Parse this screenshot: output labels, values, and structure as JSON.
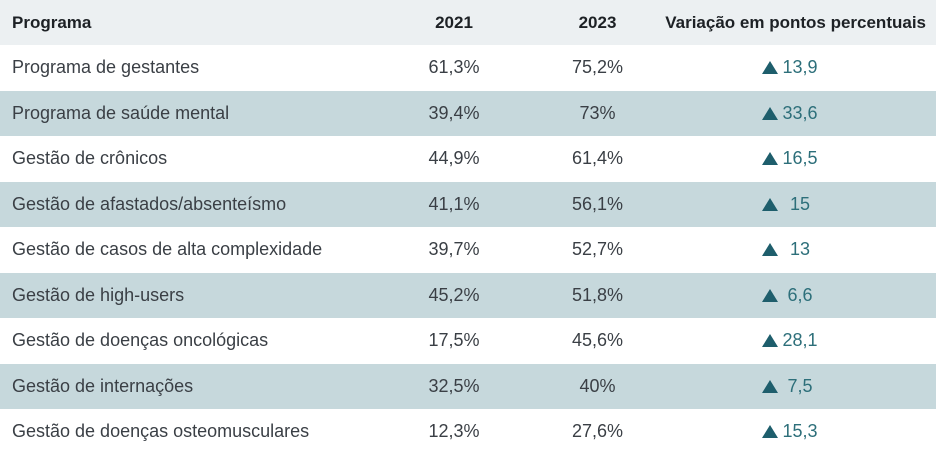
{
  "headers": {
    "programa": "Programa",
    "y2021": "2021",
    "y2023": "2023",
    "variacao": "Variação em pontos percentuais"
  },
  "rows": [
    {
      "programa": "Programa de gestantes",
      "v2021": "61,3%",
      "v2023": "75,2%",
      "variacao": "13,9"
    },
    {
      "programa": "Programa de saúde mental",
      "v2021": "39,4%",
      "v2023": "73%",
      "variacao": "33,6"
    },
    {
      "programa": "Gestão de crônicos",
      "v2021": "44,9%",
      "v2023": "61,4%",
      "variacao": "16,5"
    },
    {
      "programa": "Gestão de afastados/absenteísmo",
      "v2021": "41,1%",
      "v2023": "56,1%",
      "variacao": "15"
    },
    {
      "programa": "Gestão de casos de alta complexidade",
      "v2021": "39,7%",
      "v2023": "52,7%",
      "variacao": "13"
    },
    {
      "programa": "Gestão de high-users",
      "v2021": "45,2%",
      "v2023": "51,8%",
      "variacao": "6,6"
    },
    {
      "programa": "Gestão de doenças oncológicas",
      "v2021": "17,5%",
      "v2023": "45,6%",
      "variacao": "28,1"
    },
    {
      "programa": "Gestão de internações",
      "v2021": "32,5%",
      "v2023": "40%",
      "variacao": "7,5"
    },
    {
      "programa": "Gestão de doenças osteomusculares",
      "v2021": "12,3%",
      "v2023": "27,6%",
      "variacao": "15,3"
    }
  ],
  "colors": {
    "header_bg": "#ecf0f2",
    "shaded_row_bg": "#c6d8dc",
    "triangle": "#1e5e6c",
    "delta_text": "#2d6f7a"
  },
  "icons": {
    "trend": "triangle-up-icon"
  }
}
